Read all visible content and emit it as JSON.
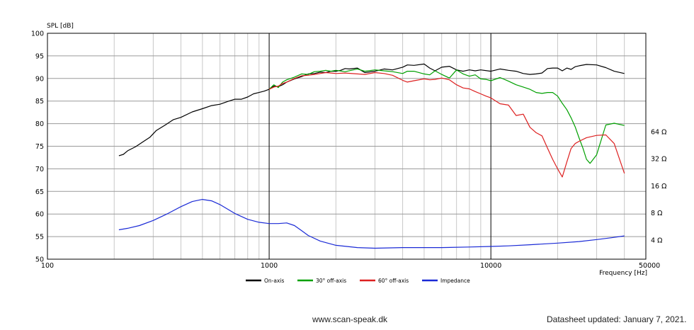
{
  "chart_data": {
    "type": "line",
    "title": "",
    "ylabel": "SPL [dB]",
    "xlabel": "Frequency [Hz]",
    "x_scale": "log",
    "xlim": [
      100,
      50000
    ],
    "ylim": [
      50,
      100
    ],
    "x_ticks": [
      {
        "value": 100,
        "label": "100"
      },
      {
        "value": 1000,
        "label": "1000"
      },
      {
        "value": 10000,
        "label": "10000"
      },
      {
        "value": 50000,
        "label": "50000"
      }
    ],
    "y_ticks": [
      {
        "value": 100,
        "label": "100"
      },
      {
        "value": 95,
        "label": "95"
      },
      {
        "value": 90,
        "label": "90"
      },
      {
        "value": 85,
        "label": "85"
      },
      {
        "value": 80,
        "label": "80"
      },
      {
        "value": 75,
        "label": "75"
      },
      {
        "value": 70,
        "label": "70"
      },
      {
        "value": 65,
        "label": "65"
      },
      {
        "value": 60,
        "label": "60"
      },
      {
        "value": 55,
        "label": "55"
      },
      {
        "value": 50,
        "label": "50"
      }
    ],
    "impedance_axis": {
      "unit": "Ω",
      "ticks": [
        {
          "value": 64,
          "label": "64 Ω"
        },
        {
          "value": 32,
          "label": "32 Ω"
        },
        {
          "value": 16,
          "label": "16 Ω"
        },
        {
          "value": 8,
          "label": "8 Ω"
        },
        {
          "value": 4,
          "label": "4 Ω"
        }
      ]
    },
    "grid": true,
    "legend_position": "bottom-center",
    "series": [
      {
        "name": "On-axis",
        "color": "#000000",
        "axis": "spl",
        "x": [
          210,
          220,
          230,
          250,
          270,
          290,
          310,
          340,
          370,
          400,
          450,
          500,
          550,
          600,
          650,
          700,
          750,
          800,
          850,
          900,
          950,
          1000,
          1050,
          1100,
          1150,
          1200,
          1300,
          1400,
          1500,
          1600,
          1700,
          1800,
          1900,
          2000,
          2100,
          2200,
          2300,
          2500,
          2700,
          3000,
          3300,
          3600,
          4000,
          4200,
          4500,
          5000,
          5300,
          5600,
          6000,
          6500,
          7000,
          7500,
          8000,
          8500,
          9000,
          10000,
          11000,
          12000,
          13000,
          14000,
          15000,
          16000,
          17000,
          18000,
          19000,
          20000,
          21000,
          22000,
          23000,
          24000,
          25000,
          27000,
          30000,
          33000,
          36000,
          40000
        ],
        "y": [
          72.9,
          73.2,
          74.0,
          74.9,
          76.0,
          77.0,
          78.5,
          79.7,
          80.9,
          81.4,
          82.6,
          83.3,
          84.0,
          84.3,
          84.9,
          85.4,
          85.4,
          85.9,
          86.6,
          86.9,
          87.2,
          87.6,
          88.3,
          88.2,
          88.6,
          89.2,
          89.9,
          90.4,
          91.0,
          91.1,
          91.4,
          91.3,
          91.6,
          91.6,
          91.8,
          92.2,
          92.1,
          92.3,
          91.3,
          91.6,
          92.1,
          91.9,
          92.5,
          93.0,
          92.9,
          93.2,
          92.3,
          91.7,
          92.5,
          92.7,
          91.9,
          91.6,
          91.9,
          91.7,
          91.9,
          91.6,
          92.1,
          91.8,
          91.6,
          91.1,
          90.9,
          91.0,
          91.2,
          92.2,
          92.3,
          92.3,
          91.7,
          92.3,
          92.0,
          92.6,
          92.8,
          93.1,
          93.0,
          92.4,
          91.6,
          91.1
        ]
      },
      {
        "name": "30° off-axis",
        "color": "#00a000",
        "axis": "spl",
        "x": [
          1000,
          1050,
          1100,
          1150,
          1200,
          1300,
          1400,
          1500,
          1600,
          1700,
          1800,
          1900,
          2000,
          2200,
          2500,
          2700,
          3000,
          3300,
          3600,
          4000,
          4200,
          4500,
          5000,
          5300,
          5600,
          6000,
          6500,
          7000,
          7500,
          8000,
          8500,
          9000,
          9500,
          10000,
          11000,
          12000,
          13000,
          14000,
          15000,
          16000,
          17000,
          18000,
          19000,
          20000,
          21000,
          22000,
          23000,
          24000,
          25000,
          26000,
          27000,
          28000,
          30000,
          33000,
          36000,
          40000
        ],
        "y": [
          87.6,
          88.6,
          88.0,
          89.2,
          89.7,
          90.3,
          91.0,
          90.9,
          91.5,
          91.6,
          91.8,
          91.6,
          91.8,
          91.5,
          92.1,
          91.6,
          91.9,
          91.7,
          91.5,
          91.1,
          91.6,
          91.6,
          91.0,
          90.8,
          91.7,
          90.9,
          90.1,
          91.9,
          91.0,
          90.5,
          90.8,
          89.9,
          89.8,
          89.5,
          90.2,
          89.4,
          88.6,
          88.1,
          87.6,
          86.9,
          86.7,
          86.9,
          86.9,
          86.1,
          84.5,
          83.1,
          81.3,
          79.3,
          76.8,
          74.6,
          72.1,
          71.2,
          73.1,
          79.7,
          80.1,
          79.6
        ]
      },
      {
        "name": "60° off-axis",
        "color": "#dd2020",
        "axis": "spl",
        "x": [
          1000,
          1050,
          1100,
          1150,
          1200,
          1300,
          1400,
          1500,
          1600,
          1700,
          1800,
          1900,
          2000,
          2200,
          2500,
          2700,
          3000,
          3300,
          3600,
          4000,
          4200,
          4500,
          5000,
          5300,
          5600,
          6000,
          6500,
          7000,
          7500,
          8000,
          8500,
          9000,
          9500,
          10000,
          11000,
          12000,
          13000,
          14000,
          15000,
          16000,
          17000,
          18000,
          19000,
          20000,
          21000,
          22000,
          23000,
          24000,
          25000,
          27000,
          30000,
          33000,
          36000,
          40000
        ],
        "y": [
          87.6,
          88.1,
          88.3,
          88.9,
          89.2,
          90.0,
          90.6,
          90.7,
          90.9,
          91.1,
          91.3,
          91.2,
          91.1,
          91.2,
          91.0,
          90.9,
          91.3,
          91.1,
          90.7,
          89.6,
          89.2,
          89.5,
          89.9,
          89.7,
          89.8,
          90.1,
          89.7,
          88.6,
          87.9,
          87.7,
          87.1,
          86.6,
          86.1,
          85.7,
          84.4,
          84.1,
          81.8,
          82.1,
          79.2,
          78.0,
          77.3,
          74.6,
          72.1,
          70.0,
          68.2,
          71.5,
          74.5,
          75.6,
          76.1,
          76.9,
          77.4,
          77.5,
          75.6,
          69.0
        ]
      },
      {
        "name": "Impedance",
        "color": "#1a2ad6",
        "axis": "impedance",
        "x": [
          210,
          230,
          260,
          300,
          350,
          400,
          450,
          500,
          550,
          600,
          650,
          700,
          800,
          900,
          1000,
          1100,
          1200,
          1300,
          1400,
          1500,
          1700,
          2000,
          2500,
          3000,
          4000,
          5000,
          6000,
          8000,
          10000,
          12000,
          15000,
          20000,
          25000,
          30000,
          35000,
          40000
        ],
        "y": [
          5.2,
          5.4,
          5.8,
          6.6,
          7.9,
          9.4,
          10.7,
          11.3,
          10.9,
          9.9,
          8.8,
          7.9,
          6.8,
          6.3,
          6.1,
          6.1,
          6.2,
          5.8,
          5.1,
          4.5,
          3.9,
          3.5,
          3.3,
          3.25,
          3.3,
          3.3,
          3.3,
          3.35,
          3.4,
          3.45,
          3.55,
          3.7,
          3.85,
          4.05,
          4.25,
          4.45
        ]
      }
    ]
  },
  "footer": {
    "website": "www.scan-speak.dk",
    "updated": "Datasheet updated: January 7, 2021."
  }
}
